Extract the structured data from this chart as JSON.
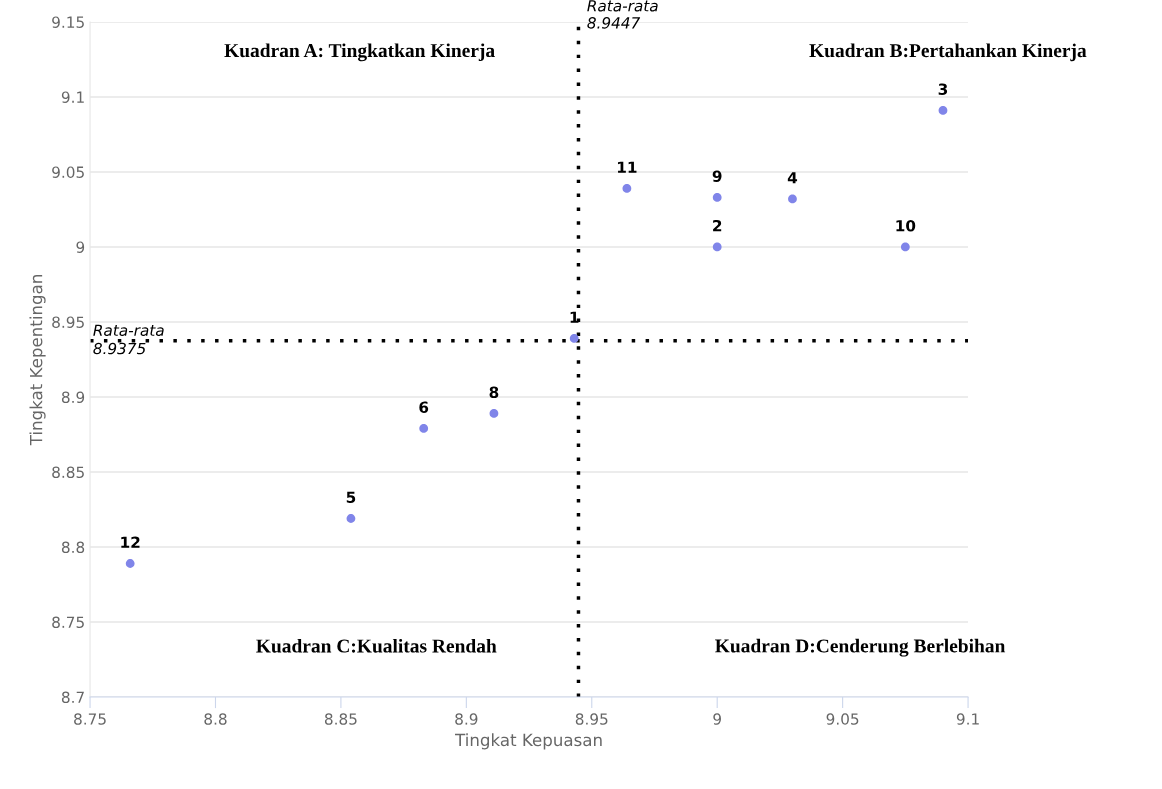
{
  "chart_data": {
    "type": "scatter",
    "xlabel": "Tingkat Kepuasan",
    "ylabel": "Tingkat Kepentingan",
    "series": [
      {
        "color": "#8085e9",
        "x": [
          8.943,
          9.0,
          9.09,
          9.03,
          8.854,
          8.883,
          8.911,
          9.0,
          9.075,
          8.964,
          8.766
        ],
        "values": [
          8.939,
          9.0,
          9.091,
          9.032,
          8.819,
          8.879,
          8.889,
          9.033,
          9.0,
          9.039,
          8.789
        ]
      }
    ],
    "xlim": [
      8.75,
      9.1
    ],
    "xticks": [
      8.75,
      8.8,
      8.85,
      8.9,
      8.95,
      9,
      9.05,
      9.1
    ],
    "ylim": [
      8.7,
      9.15
    ],
    "yticks": [
      8.7,
      8.75,
      8.8,
      8.85,
      8.9,
      8.95,
      9,
      9.05,
      9.1,
      9.15
    ],
    "grid": "y",
    "marker": "circle",
    "ref_lines": [
      {
        "axis": "x",
        "value": 8.9447,
        "label": "Rata-rata\n8.9447",
        "line_style": "dotted",
        "color": "#000000"
      },
      {
        "axis": "y",
        "value": 8.9375,
        "label": "Rata-rata\n8.9375",
        "line_style": "dotted",
        "color": "#000000"
      }
    ],
    "annotations": [
      {
        "text": "1",
        "x": 8.943,
        "y": 8.939
      },
      {
        "text": "2",
        "x": 9.0,
        "y": 9.0
      },
      {
        "text": "3",
        "x": 9.09,
        "y": 9.091
      },
      {
        "text": "4",
        "x": 9.03,
        "y": 9.032
      },
      {
        "text": "5",
        "x": 8.854,
        "y": 8.819
      },
      {
        "text": "6",
        "x": 8.883,
        "y": 8.879
      },
      {
        "text": "8",
        "x": 8.911,
        "y": 8.889
      },
      {
        "text": "9",
        "x": 9.0,
        "y": 9.033
      },
      {
        "text": "10",
        "x": 9.075,
        "y": 9.0
      },
      {
        "text": "11",
        "x": 8.964,
        "y": 9.039
      },
      {
        "text": "12",
        "x": 8.766,
        "y": 8.789
      },
      "Kuadran A: Tingkatkan Kinerja",
      "Kuadran B:Pertahankan Kinerja",
      "Kuadran C:Kualitas Rendah",
      "Kuadran D:Cenderung Berlebihan"
    ]
  }
}
